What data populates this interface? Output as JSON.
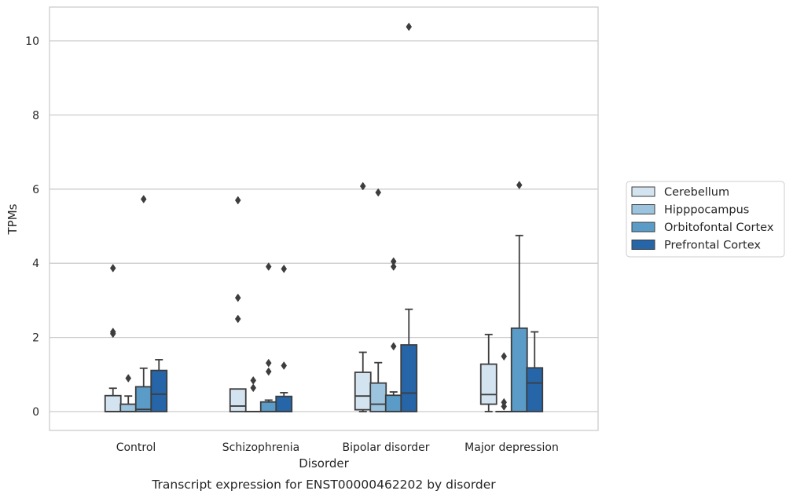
{
  "chart_data": {
    "type": "boxplot",
    "title": "",
    "caption": "Transcript expression for ENST00000462202 by disorder",
    "xlabel": "Disorder",
    "ylabel": "TPMs",
    "ylim": [
      -0.5,
      10.9
    ],
    "yticks": [
      0,
      2,
      4,
      6,
      8,
      10
    ],
    "grid": "horizontal",
    "legend_position": "right",
    "categories": [
      "Control",
      "Schizophrenia",
      "Bipolar disorder",
      "Major depression"
    ],
    "series": [
      {
        "name": "Cerebellum",
        "color": "#d4e3f0",
        "boxes": [
          {
            "whislo": 0.0,
            "q1": 0.0,
            "med": 0.0,
            "q3": 0.43,
            "whishi": 0.63,
            "fliers": [
              3.87,
              2.15,
              2.1
            ]
          },
          {
            "whislo": 0.0,
            "q1": 0.0,
            "med": 0.15,
            "q3": 0.61,
            "whishi": 0.61,
            "fliers": [
              5.7,
              3.07,
              2.5
            ]
          },
          {
            "whislo": 0.0,
            "q1": 0.05,
            "med": 0.42,
            "q3": 1.06,
            "whishi": 1.6,
            "fliers": [
              6.08
            ]
          },
          {
            "whislo": 0.0,
            "q1": 0.2,
            "med": 0.46,
            "q3": 1.28,
            "whishi": 2.08,
            "fliers": []
          }
        ]
      },
      {
        "name": "Hipppocampus",
        "color": "#9dc4de",
        "boxes": [
          {
            "whislo": 0.0,
            "q1": 0.0,
            "med": 0.0,
            "q3": 0.2,
            "whishi": 0.42,
            "fliers": [
              0.9
            ]
          },
          {
            "whislo": 0.0,
            "q1": 0.0,
            "med": 0.0,
            "q3": 0.0,
            "whishi": 0.0,
            "fliers": [
              0.84,
              0.64
            ]
          },
          {
            "whislo": 0.0,
            "q1": 0.0,
            "med": 0.2,
            "q3": 0.77,
            "whishi": 1.32,
            "fliers": [
              5.91
            ]
          },
          {
            "whislo": 0.0,
            "q1": 0.0,
            "med": 0.0,
            "q3": 0.0,
            "whishi": 0.0,
            "fliers": [
              1.49,
              0.25,
              0.14
            ]
          }
        ]
      },
      {
        "name": "Orbitofontal Cortex",
        "color": "#5a9bc8",
        "boxes": [
          {
            "whislo": 0.0,
            "q1": 0.0,
            "med": 0.06,
            "q3": 0.67,
            "whishi": 1.17,
            "fliers": [
              5.73
            ]
          },
          {
            "whislo": 0.0,
            "q1": 0.0,
            "med": 0.0,
            "q3": 0.26,
            "whishi": 0.31,
            "fliers": [
              3.91,
              1.31,
              1.08
            ]
          },
          {
            "whislo": 0.0,
            "q1": 0.0,
            "med": 0.0,
            "q3": 0.44,
            "whishi": 0.53,
            "fliers": [
              4.05,
              3.91,
              1.76
            ]
          },
          {
            "whislo": 0.0,
            "q1": 0.0,
            "med": 0.0,
            "q3": 2.25,
            "whishi": 4.75,
            "fliers": [
              6.11
            ]
          }
        ]
      },
      {
        "name": "Prefrontal Cortex",
        "color": "#2565a8",
        "boxes": [
          {
            "whislo": 0.0,
            "q1": 0.0,
            "med": 0.47,
            "q3": 1.11,
            "whishi": 1.4,
            "fliers": []
          },
          {
            "whislo": 0.0,
            "q1": 0.0,
            "med": 0.0,
            "q3": 0.41,
            "whishi": 0.51,
            "fliers": [
              3.85,
              1.24
            ]
          },
          {
            "whislo": 0.0,
            "q1": 0.0,
            "med": 0.5,
            "q3": 1.8,
            "whishi": 2.76,
            "fliers": [
              10.38
            ]
          },
          {
            "whislo": 0.0,
            "q1": 0.0,
            "med": 0.77,
            "q3": 1.18,
            "whishi": 2.15,
            "fliers": []
          }
        ]
      }
    ]
  }
}
